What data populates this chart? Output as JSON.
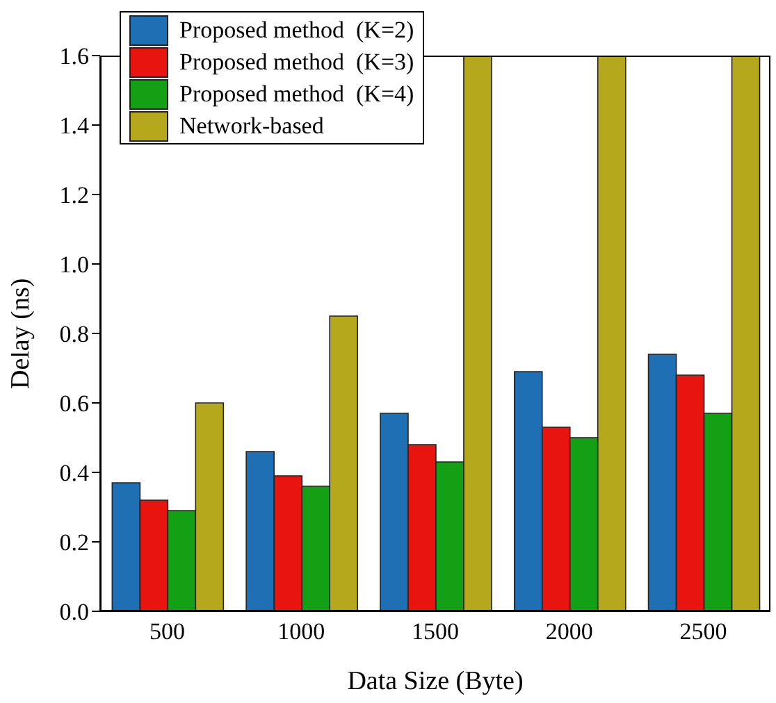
{
  "chart_data": {
    "type": "bar",
    "xlabel": "Data Size (Byte)",
    "ylabel": "Delay (ns)",
    "categories": [
      "500",
      "1000",
      "1500",
      "2000",
      "2500"
    ],
    "series": [
      {
        "name": "Proposed method  (K=2)",
        "color": "#1f6fb4",
        "values": [
          0.37,
          0.46,
          0.57,
          0.69,
          0.74
        ]
      },
      {
        "name": "Proposed method  (K=3)",
        "color": "#e8140f",
        "values": [
          0.32,
          0.39,
          0.48,
          0.53,
          0.68
        ]
      },
      {
        "name": "Proposed method  (K=4)",
        "color": "#14a014",
        "values": [
          0.29,
          0.36,
          0.43,
          0.5,
          0.57
        ]
      },
      {
        "name": "Network-based",
        "color": "#b5a81d",
        "values": [
          0.6,
          0.85,
          1.6,
          1.6,
          1.6
        ]
      }
    ],
    "ylim": [
      0,
      1.6
    ],
    "yticks": [
      {
        "value": 0,
        "label": "0.0"
      },
      {
        "value": 0.2,
        "label": "0.2"
      },
      {
        "value": 0.4,
        "label": "0.4"
      },
      {
        "value": 0.6,
        "label": "0.6"
      },
      {
        "value": 0.8,
        "label": "0.8"
      },
      {
        "value": 1,
        "label": "1.0"
      },
      {
        "value": 1.2,
        "label": "1.2"
      },
      {
        "value": 1.4,
        "label": "1.4"
      },
      {
        "value": 1.6,
        "label": "1.6"
      }
    ],
    "legend": "top left",
    "grid": false
  }
}
